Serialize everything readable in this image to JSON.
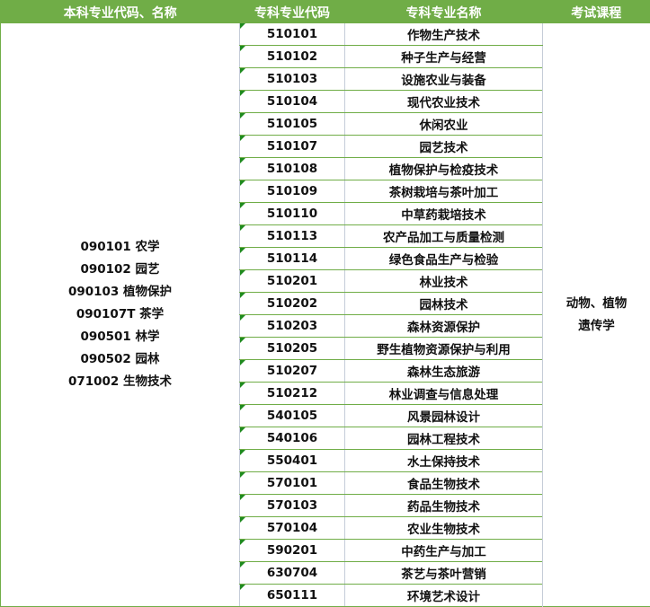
{
  "header": {
    "col1": "本科专业代码、名称",
    "col2": "专科专业代码",
    "col3": "专科专业名称",
    "col4": "考试课程"
  },
  "undergraduate_majors": [
    "090101 农学",
    "090102 园艺",
    "090103 植物保护",
    "090107T 茶学",
    "090501 林学",
    "090502 园林",
    "071002 生物技术"
  ],
  "exam_courses": [
    "动物、植物",
    "遗传学"
  ],
  "rows": [
    {
      "code": "510101",
      "name": "作物生产技术"
    },
    {
      "code": "510102",
      "name": "种子生产与经营"
    },
    {
      "code": "510103",
      "name": "设施农业与装备"
    },
    {
      "code": "510104",
      "name": "现代农业技术"
    },
    {
      "code": "510105",
      "name": "休闲农业"
    },
    {
      "code": "510107",
      "name": "园艺技术"
    },
    {
      "code": "510108",
      "name": "植物保护与检疫技术"
    },
    {
      "code": "510109",
      "name": "茶树栽培与茶叶加工"
    },
    {
      "code": "510110",
      "name": "中草药栽培技术"
    },
    {
      "code": "510113",
      "name": "农产品加工与质量检测"
    },
    {
      "code": "510114",
      "name": "绿色食品生产与检验"
    },
    {
      "code": "510201",
      "name": "林业技术"
    },
    {
      "code": "510202",
      "name": "园林技术"
    },
    {
      "code": "510203",
      "name": "森林资源保护"
    },
    {
      "code": "510205",
      "name": "野生植物资源保护与利用"
    },
    {
      "code": "510207",
      "name": "森林生态旅游"
    },
    {
      "code": "510212",
      "name": "林业调查与信息处理"
    },
    {
      "code": "540105",
      "name": "风景园林设计"
    },
    {
      "code": "540106",
      "name": "园林工程技术"
    },
    {
      "code": "550401",
      "name": "水土保持技术"
    },
    {
      "code": "570101",
      "name": "食品生物技术"
    },
    {
      "code": "570103",
      "name": "药品生物技术"
    },
    {
      "code": "570104",
      "name": "农业生物技术"
    },
    {
      "code": "590201",
      "name": "中药生产与加工"
    },
    {
      "code": "630704",
      "name": "茶艺与茶叶营销"
    },
    {
      "code": "650111",
      "name": "环境艺术设计"
    }
  ],
  "colors": {
    "header_bg": "#70AD47",
    "border": "#70AD47"
  }
}
